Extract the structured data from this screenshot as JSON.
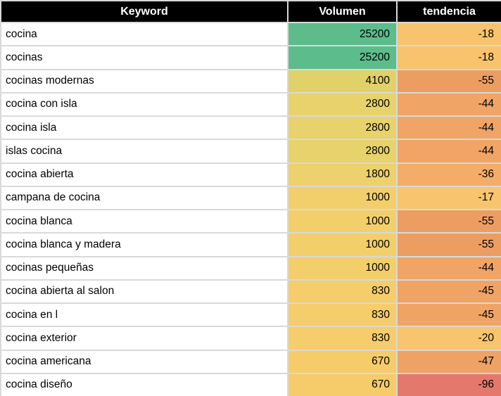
{
  "header": {
    "keyword_label": "Keyword",
    "volumen_label": "Volumen",
    "tendencia_label": "tendencia"
  },
  "colors": {
    "header_bg": "#000000",
    "header_text": "#ffffff",
    "grid_border": "#d9d9d9",
    "keyword_cell_bg": "#ffffff",
    "data_text": "#000000",
    "volume_max_green": "#5cbc8c",
    "trend_min_red": "#e4786d"
  },
  "chart_data": {
    "type": "table",
    "columns": [
      "Keyword",
      "Volumen",
      "tendencia"
    ],
    "rows": [
      {
        "keyword": "cocina",
        "volumen": "25200",
        "tendencia": "-18",
        "volumen_bg": "#5cbc8c",
        "tendencia_bg": "#f8c36c"
      },
      {
        "keyword": "cocinas",
        "volumen": "25200",
        "tendencia": "-18",
        "volumen_bg": "#5cbc8c",
        "tendencia_bg": "#f8c36c"
      },
      {
        "keyword": "cocinas modernas",
        "volumen": "4100",
        "tendencia": "-55",
        "volumen_bg": "#e1d169",
        "tendencia_bg": "#ec9e62"
      },
      {
        "keyword": "cocina con isla",
        "volumen": "2800",
        "tendencia": "-44",
        "volumen_bg": "#e8d26b",
        "tendencia_bg": "#f0a566"
      },
      {
        "keyword": "cocina isla",
        "volumen": "2800",
        "tendencia": "-44",
        "volumen_bg": "#e8d26b",
        "tendencia_bg": "#f0a566"
      },
      {
        "keyword": "islas cocina",
        "volumen": "2800",
        "tendencia": "-44",
        "volumen_bg": "#e8d26b",
        "tendencia_bg": "#f0a566"
      },
      {
        "keyword": "cocina abierta",
        "volumen": "1800",
        "tendencia": "-36",
        "volumen_bg": "#edd16c",
        "tendencia_bg": "#f3ad68"
      },
      {
        "keyword": "campana de cocina",
        "volumen": "1000",
        "tendencia": "-17",
        "volumen_bg": "#f3cf6c",
        "tendencia_bg": "#f8c56e"
      },
      {
        "keyword": "cocina blanca",
        "volumen": "1000",
        "tendencia": "-55",
        "volumen_bg": "#f3cf6c",
        "tendencia_bg": "#ec9e62"
      },
      {
        "keyword": "cocina blanca y madera",
        "volumen": "1000",
        "tendencia": "-55",
        "volumen_bg": "#f3cf6c",
        "tendencia_bg": "#ec9e62"
      },
      {
        "keyword": "cocinas pequeñas",
        "volumen": "1000",
        "tendencia": "-44",
        "volumen_bg": "#f3cf6c",
        "tendencia_bg": "#f0a566"
      },
      {
        "keyword": "cocina abierta al salon",
        "volumen": "830",
        "tendencia": "-45",
        "volumen_bg": "#f5cd6b",
        "tendencia_bg": "#efa466"
      },
      {
        "keyword": "cocina en l",
        "volumen": "830",
        "tendencia": "-45",
        "volumen_bg": "#f5cd6b",
        "tendencia_bg": "#efa466"
      },
      {
        "keyword": "cocina exterior",
        "volumen": "830",
        "tendencia": "-20",
        "volumen_bg": "#f5cd6b",
        "tendencia_bg": "#f8c46d"
      },
      {
        "keyword": "cocina americana",
        "volumen": "670",
        "tendencia": "-47",
        "volumen_bg": "#f6cc6a",
        "tendencia_bg": "#eea265"
      },
      {
        "keyword": "cocina diseño",
        "volumen": "670",
        "tendencia": "-96",
        "volumen_bg": "#f6cc6a",
        "tendencia_bg": "#e4786d"
      }
    ]
  }
}
